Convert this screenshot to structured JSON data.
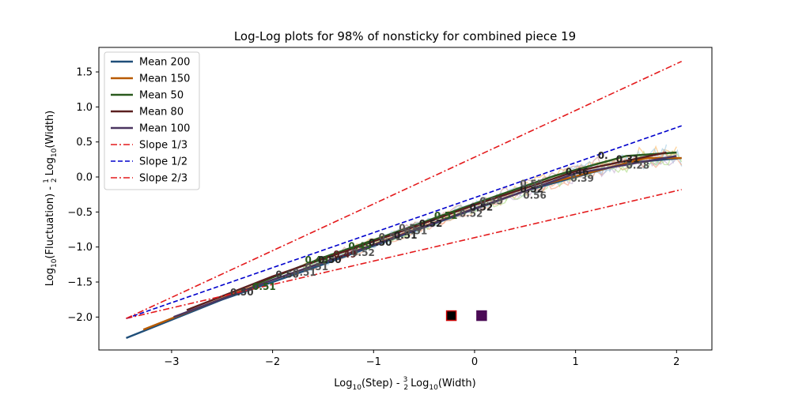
{
  "chart_data": {
    "type": "line",
    "title": "Log-Log plots for 98% of nonsticky for combined piece 19",
    "xlabel": {
      "pre": "Log",
      "sub1": "10",
      "mid": "(Step) - ",
      "num": "3",
      "den": "2",
      "sub2": "10",
      "post": "(Width)",
      "log": "Log"
    },
    "ylabel": {
      "pre": "Log",
      "sub1": "10",
      "mid": "(Fluctuation) - ",
      "num": "1",
      "den": "2",
      "sub2": "10",
      "post": "(Width)",
      "log": "Log"
    },
    "xlim": [
      -3.72,
      2.35
    ],
    "ylim": [
      -2.47,
      1.85
    ],
    "xticks": [
      -3,
      -2,
      -1,
      0,
      1,
      2
    ],
    "yticks": [
      -2.0,
      -1.5,
      -1.0,
      -0.5,
      0.0,
      0.5,
      1.0,
      1.5
    ],
    "xtick_labels": [
      "−3",
      "−2",
      "−1",
      "0",
      "1",
      "2"
    ],
    "ytick_labels": [
      "−2.0",
      "−1.5",
      "−1.0",
      "−0.5",
      "0.0",
      "0.5",
      "1.0",
      "1.5"
    ],
    "legend_position": "upper-left",
    "series": [
      {
        "name": "Mean 200",
        "color": "#1f4e79",
        "style": "solid",
        "x": [
          -3.45,
          -2.5,
          -1.5,
          -0.5,
          0.5,
          1.5,
          2.05
        ],
        "y": [
          -2.3,
          -1.75,
          -1.25,
          -0.72,
          -0.2,
          0.2,
          0.27
        ]
      },
      {
        "name": "Mean 150",
        "color": "#b85a00",
        "style": "solid",
        "x": [
          -3.28,
          -2.3,
          -1.3,
          -0.3,
          0.7,
          1.7,
          2.05
        ],
        "y": [
          -2.18,
          -1.62,
          -1.12,
          -0.6,
          -0.1,
          0.27,
          0.27
        ]
      },
      {
        "name": "Mean 50",
        "color": "#2a5a1e",
        "style": "solid",
        "x": [
          -2.2,
          -1.5,
          -0.8,
          0,
          0.8,
          1.5,
          2.0
        ],
        "y": [
          -1.55,
          -1.15,
          -0.8,
          -0.38,
          0.02,
          0.3,
          0.35
        ]
      },
      {
        "name": "Mean 80",
        "color": "#5a1f1f",
        "style": "solid",
        "x": [
          -2.85,
          -2.0,
          -1.0,
          0,
          1.0,
          1.9
        ],
        "y": [
          -1.9,
          -1.42,
          -0.92,
          -0.4,
          0.08,
          0.35
        ]
      },
      {
        "name": "Mean 100",
        "color": "#4a3560",
        "style": "solid",
        "x": [
          -2.98,
          -2.0,
          -1.0,
          0,
          1.0,
          2.0
        ],
        "y": [
          -2.0,
          -1.47,
          -0.97,
          -0.45,
          0.05,
          0.3
        ]
      },
      {
        "name": "Slope 1/3",
        "color": "#e41a1c",
        "style": "dashdot",
        "x": [
          -3.45,
          2.05
        ],
        "y": [
          -2.02,
          -0.18
        ]
      },
      {
        "name": "Slope 1/2",
        "color": "#0000cc",
        "style": "dashed",
        "x": [
          -3.45,
          2.05
        ],
        "y": [
          -2.02,
          0.73
        ]
      },
      {
        "name": "Slope 2/3",
        "color": "#e41a1c",
        "style": "dashdot",
        "x": [
          -3.45,
          2.05
        ],
        "y": [
          -2.02,
          1.65
        ]
      }
    ],
    "annotations": [
      {
        "text": "0.50",
        "x": -2.42,
        "y": -1.69,
        "color": "#3a3a3a"
      },
      {
        "text": "0.51",
        "x": -2.2,
        "y": -1.61,
        "color": "#2a5a1e"
      },
      {
        "text": "0.50",
        "x": -1.97,
        "y": -1.44,
        "color": "#3a3a3a"
      },
      {
        "text": "0.51",
        "x": -1.8,
        "y": -1.41,
        "color": "#555555"
      },
      {
        "text": "0.51",
        "x": -1.68,
        "y": -1.33,
        "color": "#555555"
      },
      {
        "text": "0.49",
        "x": -1.68,
        "y": -1.23,
        "color": "#2a5a1e"
      },
      {
        "text": "0.50",
        "x": -1.55,
        "y": -1.23,
        "color": "#222222"
      },
      {
        "text": "0.49",
        "x": -1.4,
        "y": -1.15,
        "color": "#5a1f1f"
      },
      {
        "text": "0.52",
        "x": -1.22,
        "y": -1.13,
        "color": "#555555"
      },
      {
        "text": "0.49",
        "x": -1.25,
        "y": -1.03,
        "color": "#2a5a1e"
      },
      {
        "text": "0.50",
        "x": -1.05,
        "y": -0.98,
        "color": "#222222"
      },
      {
        "text": "0.51",
        "x": -0.95,
        "y": -0.9,
        "color": "#555555"
      },
      {
        "text": "0.51",
        "x": -0.8,
        "y": -0.88,
        "color": "#222222"
      },
      {
        "text": "0.51",
        "x": -0.7,
        "y": -0.82,
        "color": "#555555"
      },
      {
        "text": "0.53",
        "x": -0.75,
        "y": -0.77,
        "color": "#555555"
      },
      {
        "text": "0.52",
        "x": -0.55,
        "y": -0.71,
        "color": "#222222"
      },
      {
        "text": "0.51",
        "x": -0.4,
        "y": -0.6,
        "color": "#2a5a1e"
      },
      {
        "text": "0.52",
        "x": -0.15,
        "y": -0.57,
        "color": "#555555"
      },
      {
        "text": "0.52",
        "x": -0.05,
        "y": -0.48,
        "color": "#222222"
      },
      {
        "text": "0.55",
        "x": 0.05,
        "y": -0.39,
        "color": "#555555"
      },
      {
        "text": "0.56",
        "x": 0.48,
        "y": -0.31,
        "color": "#555555"
      },
      {
        "text": "0.52",
        "x": 0.45,
        "y": -0.22,
        "color": "#222222"
      },
      {
        "text": "0.55",
        "x": 0.45,
        "y": -0.14,
        "color": "#555555"
      },
      {
        "text": "0.39",
        "x": 0.95,
        "y": -0.07,
        "color": "#555555"
      },
      {
        "text": "0.46",
        "x": 0.9,
        "y": 0.03,
        "color": "#222222"
      },
      {
        "text": "0.28",
        "x": 1.5,
        "y": 0.12,
        "color": "#555555"
      },
      {
        "text": "0.31",
        "x": 1.4,
        "y": 0.21,
        "color": "#222222"
      },
      {
        "text": "0.",
        "x": 1.22,
        "y": 0.26,
        "color": "#222222"
      }
    ],
    "markers": [
      {
        "x": -0.23,
        "y": -1.98,
        "fill": "#000000",
        "stroke": "#cc0000"
      },
      {
        "x": 0.07,
        "y": -1.98,
        "fill": "#4a0a55",
        "stroke": "#4a0a55"
      }
    ]
  }
}
